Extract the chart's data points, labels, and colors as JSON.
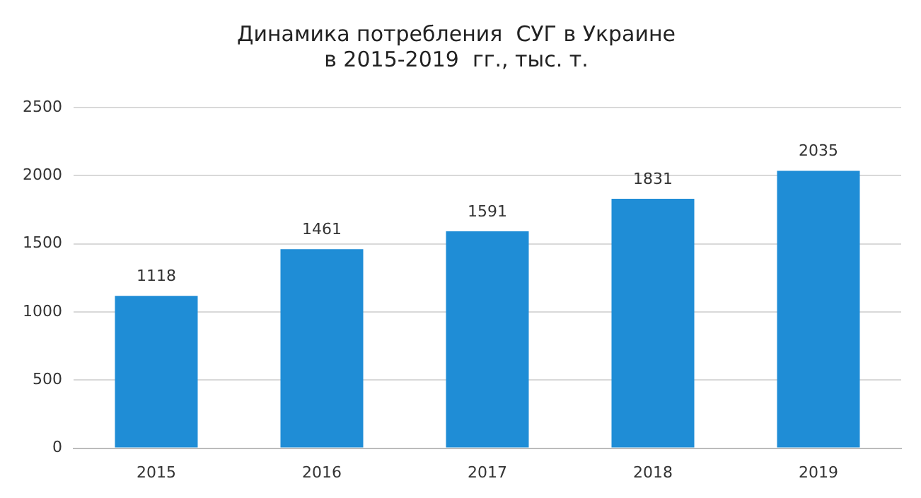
{
  "chart_data": {
    "type": "bar",
    "title": "Динамика потребления  СУГ в Украине\nв 2015-2019  гг., тыс. т.",
    "categories": [
      "2015",
      "2016",
      "2017",
      "2018",
      "2019"
    ],
    "values": [
      1118,
      1461,
      1591,
      1831,
      2035
    ],
    "color": "#1f8dd6",
    "ylim": [
      0,
      2500
    ],
    "yticks": [
      0,
      500,
      1000,
      1500,
      2000,
      2500
    ],
    "grid": "y",
    "data_labels": true,
    "legend": false
  }
}
